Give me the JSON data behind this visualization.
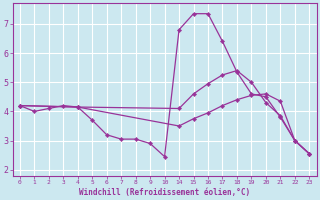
{
  "background_color": "#cce8f0",
  "grid_color": "#ffffff",
  "line_color": "#993399",
  "xlabel": "Windchill (Refroidissement éolien,°C)",
  "xlabel_color": "#993399",
  "tick_color": "#993399",
  "ylabel_values": [
    2,
    3,
    4,
    5,
    6,
    7
  ],
  "ylim": [
    1.8,
    7.7
  ],
  "xtick_labels": [
    "0",
    "1",
    "2",
    "3",
    "4",
    "5",
    "6",
    "7",
    "8",
    "9",
    "10",
    "14",
    "15",
    "16",
    "17",
    "18",
    "19",
    "20",
    "21",
    "22",
    "23"
  ],
  "xtick_positions": [
    0,
    1,
    2,
    3,
    4,
    5,
    6,
    7,
    8,
    9,
    10,
    11,
    12,
    13,
    14,
    15,
    16,
    17,
    18,
    19,
    20
  ],
  "lines": [
    {
      "xp": [
        0,
        1,
        2,
        3,
        4,
        5,
        6,
        7,
        8,
        9,
        10,
        11,
        12,
        13,
        14,
        15,
        16,
        17,
        18,
        19,
        20
      ],
      "y": [
        4.2,
        4.0,
        4.1,
        4.2,
        4.15,
        3.7,
        3.2,
        3.05,
        3.05,
        2.9,
        2.45,
        6.8,
        7.35,
        7.35,
        6.4,
        5.35,
        4.6,
        4.5,
        3.8,
        3.0,
        2.55
      ]
    },
    {
      "xp": [
        0,
        4,
        11,
        12,
        13,
        14,
        15,
        16,
        17,
        18,
        19,
        20
      ],
      "y": [
        4.2,
        4.15,
        4.1,
        4.6,
        4.95,
        5.25,
        5.4,
        5.0,
        4.3,
        3.85,
        3.0,
        2.55
      ]
    },
    {
      "xp": [
        0,
        4,
        11,
        12,
        13,
        14,
        15,
        16,
        17,
        18,
        19,
        20
      ],
      "y": [
        4.2,
        4.15,
        3.5,
        3.75,
        3.95,
        4.2,
        4.4,
        4.55,
        4.6,
        4.35,
        3.0,
        2.55
      ]
    }
  ]
}
